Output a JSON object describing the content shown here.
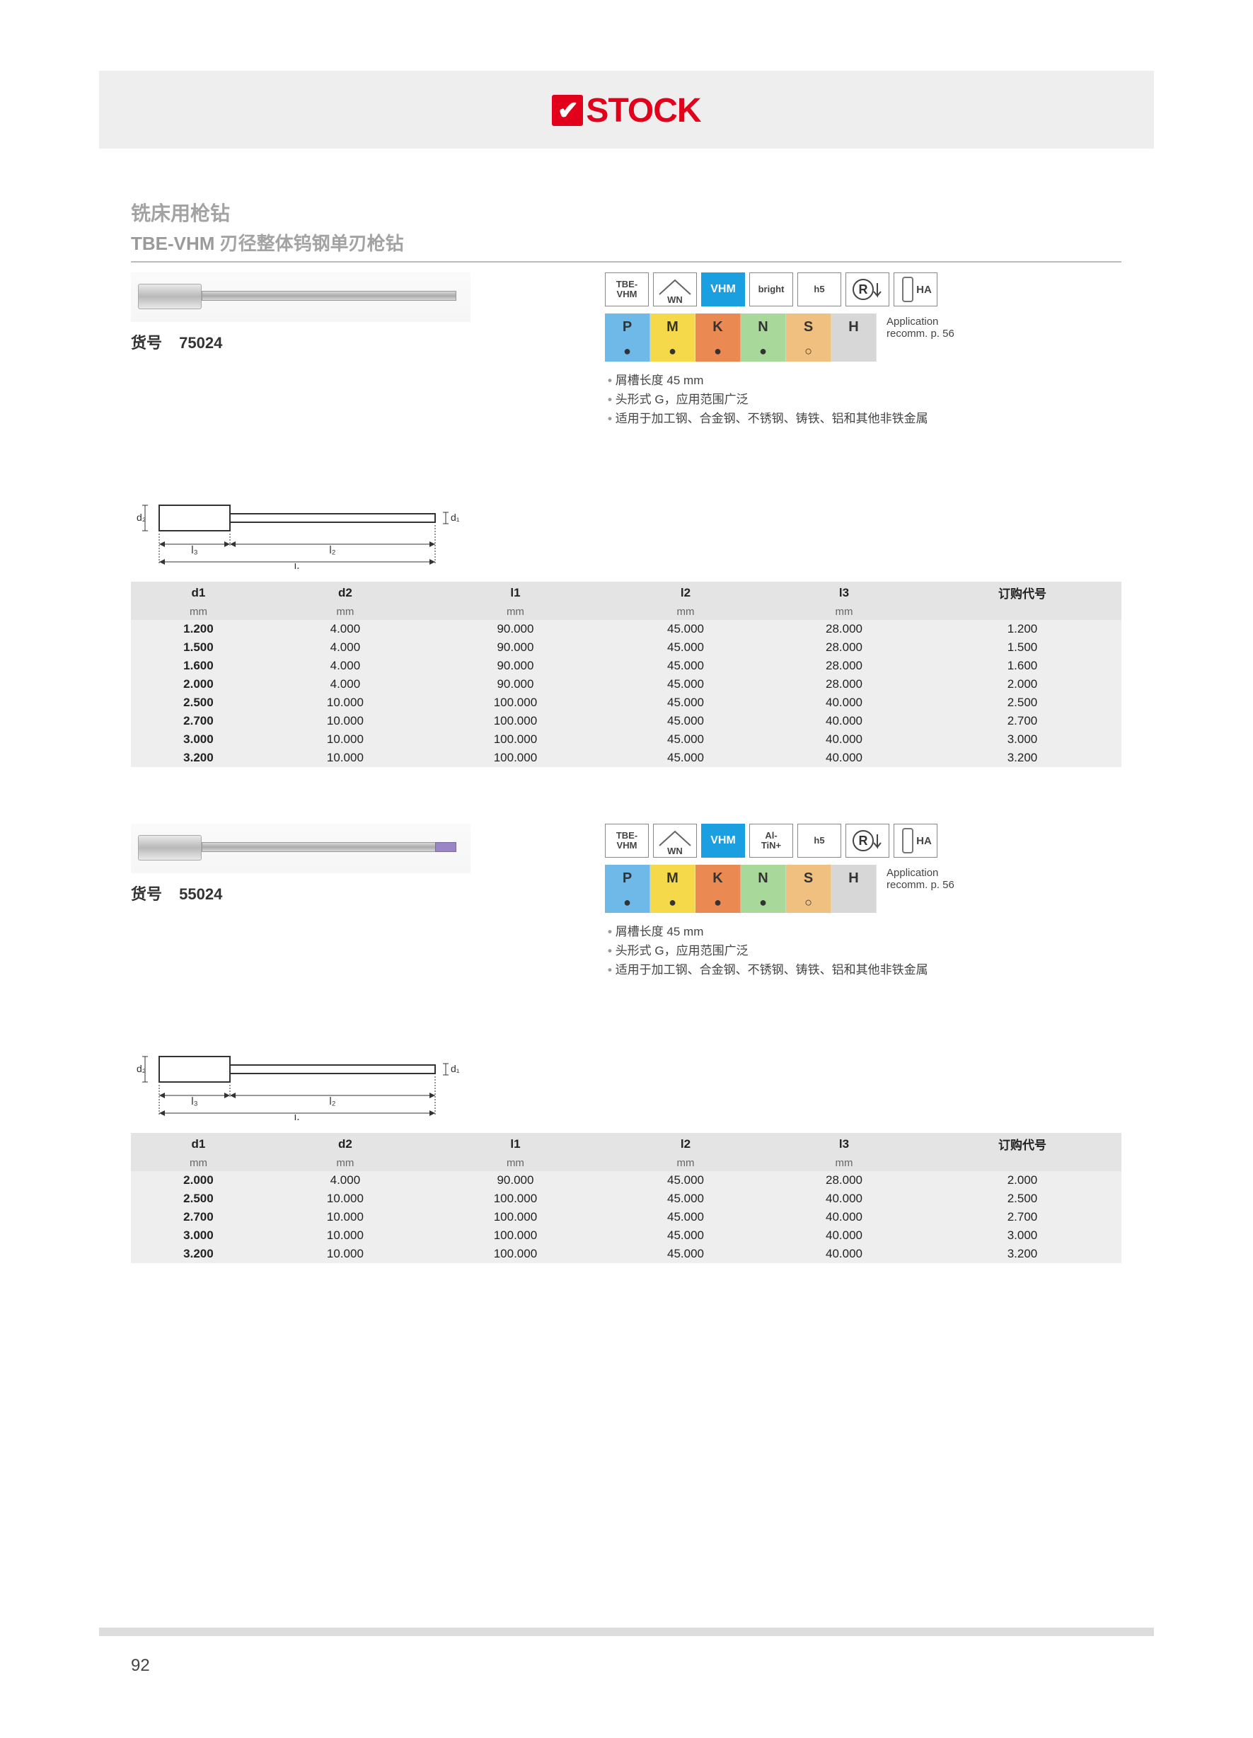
{
  "logo_text": "STOCK",
  "page_number": "92",
  "title_cn": "铣床用枪钻",
  "title_code": "TBE-VHM",
  "title_desc": "刃径整体钨钢单刃枪钻",
  "app_note_line1": "Application",
  "app_note_line2": "recomm. p. 56",
  "materials": {
    "labels": [
      "P",
      "M",
      "K",
      "N",
      "S",
      "H"
    ],
    "colors": [
      "#6fb9e8",
      "#f6d94a",
      "#ea8a52",
      "#a8d99a",
      "#f0c080",
      "#d7d7d7"
    ],
    "dots": [
      "●",
      "●",
      "●",
      "●",
      "○",
      ""
    ]
  },
  "bullets": [
    "屑槽长度 45 mm",
    "头形式 G，应用范围广泛",
    "适用于加工钢、合金钢、不锈钢、铸铁、铝和其他非铁金属"
  ],
  "table_headers": [
    "d1",
    "d2",
    "l1",
    "l2",
    "l3",
    "订购代号"
  ],
  "table_units": [
    "mm",
    "mm",
    "mm",
    "mm",
    "mm",
    ""
  ],
  "diagram_labels": {
    "d1": "d₁",
    "d2": "d₂",
    "l1": "l₁",
    "l2": "l₂",
    "l3": "l₃"
  },
  "products": [
    {
      "art_label": "货号",
      "art_no": "75024",
      "tip_purple": false,
      "badges": [
        "TBE-\nVHM",
        "WN",
        "VHM",
        "bright",
        "h5",
        "R",
        "HA"
      ],
      "rows": [
        [
          "1.200",
          "4.000",
          "90.000",
          "45.000",
          "28.000",
          "1.200"
        ],
        [
          "1.500",
          "4.000",
          "90.000",
          "45.000",
          "28.000",
          "1.500"
        ],
        [
          "1.600",
          "4.000",
          "90.000",
          "45.000",
          "28.000",
          "1.600"
        ],
        [
          "2.000",
          "4.000",
          "90.000",
          "45.000",
          "28.000",
          "2.000"
        ],
        [
          "2.500",
          "10.000",
          "100.000",
          "45.000",
          "40.000",
          "2.500"
        ],
        [
          "2.700",
          "10.000",
          "100.000",
          "45.000",
          "40.000",
          "2.700"
        ],
        [
          "3.000",
          "10.000",
          "100.000",
          "45.000",
          "40.000",
          "3.000"
        ],
        [
          "3.200",
          "10.000",
          "100.000",
          "45.000",
          "40.000",
          "3.200"
        ]
      ],
      "bands": [
        0,
        3,
        6
      ]
    },
    {
      "art_label": "货号",
      "art_no": "55024",
      "tip_purple": true,
      "badges": [
        "TBE-\nVHM",
        "WN",
        "VHM",
        "Al-\nTiN+",
        "h5",
        "R",
        "HA"
      ],
      "rows": [
        [
          "2.000",
          "4.000",
          "90.000",
          "45.000",
          "28.000",
          "2.000"
        ],
        [
          "2.500",
          "10.000",
          "100.000",
          "45.000",
          "40.000",
          "2.500"
        ],
        [
          "2.700",
          "10.000",
          "100.000",
          "45.000",
          "40.000",
          "2.700"
        ],
        [
          "3.000",
          "10.000",
          "100.000",
          "45.000",
          "40.000",
          "3.000"
        ],
        [
          "3.200",
          "10.000",
          "100.000",
          "45.000",
          "40.000",
          "3.200"
        ]
      ],
      "bands": [
        0,
        3
      ]
    }
  ]
}
